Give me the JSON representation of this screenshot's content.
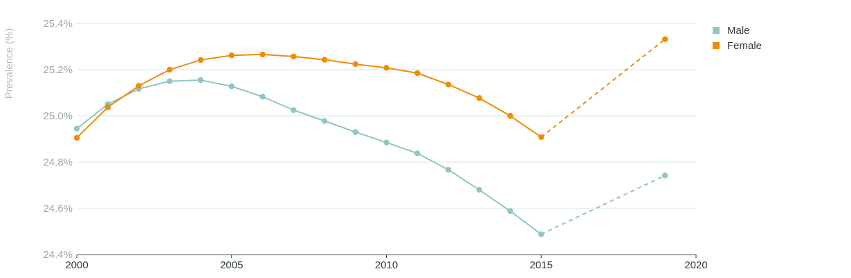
{
  "chart_data": {
    "type": "line",
    "ylabel": "Prevalence (%)",
    "xlabel": "",
    "xlim": [
      2000,
      2020
    ],
    "ylim": [
      24.4,
      25.4
    ],
    "x_ticks": [
      "2000",
      "2005",
      "2010",
      "2015",
      "2020"
    ],
    "y_ticks": [
      "24.4%",
      "24.6%",
      "24.8%",
      "25.0%",
      "25.2%",
      "25.4%"
    ],
    "grid": "horizontal",
    "legend_position": "top-right",
    "series": [
      {
        "name": "Male",
        "color": "#8ec5c5",
        "points": [
          {
            "x": 2000,
            "y": 24.945
          },
          {
            "x": 2001,
            "y": 25.05
          },
          {
            "x": 2002,
            "y": 25.117
          },
          {
            "x": 2003,
            "y": 25.15
          },
          {
            "x": 2004,
            "y": 25.155
          },
          {
            "x": 2005,
            "y": 25.128
          },
          {
            "x": 2006,
            "y": 25.083
          },
          {
            "x": 2007,
            "y": 25.025
          },
          {
            "x": 2008,
            "y": 24.978
          },
          {
            "x": 2009,
            "y": 24.93
          },
          {
            "x": 2010,
            "y": 24.885
          },
          {
            "x": 2011,
            "y": 24.838
          },
          {
            "x": 2012,
            "y": 24.767
          },
          {
            "x": 2013,
            "y": 24.68
          },
          {
            "x": 2014,
            "y": 24.588
          },
          {
            "x": 2015,
            "y": 24.488
          },
          {
            "x": 2019,
            "y": 24.742
          }
        ],
        "projected_from": 2015
      },
      {
        "name": "Female",
        "color": "#ef8c00",
        "points": [
          {
            "x": 2000,
            "y": 24.905
          },
          {
            "x": 2001,
            "y": 25.037
          },
          {
            "x": 2002,
            "y": 25.13
          },
          {
            "x": 2003,
            "y": 25.2
          },
          {
            "x": 2004,
            "y": 25.242
          },
          {
            "x": 2005,
            "y": 25.262
          },
          {
            "x": 2006,
            "y": 25.266
          },
          {
            "x": 2007,
            "y": 25.257
          },
          {
            "x": 2008,
            "y": 25.243
          },
          {
            "x": 2009,
            "y": 25.224
          },
          {
            "x": 2010,
            "y": 25.208
          },
          {
            "x": 2011,
            "y": 25.185
          },
          {
            "x": 2012,
            "y": 25.136
          },
          {
            "x": 2013,
            "y": 25.077
          },
          {
            "x": 2014,
            "y": 25.0
          },
          {
            "x": 2015,
            "y": 24.908
          },
          {
            "x": 2019,
            "y": 25.332
          }
        ],
        "projected_from": 2015
      }
    ]
  }
}
